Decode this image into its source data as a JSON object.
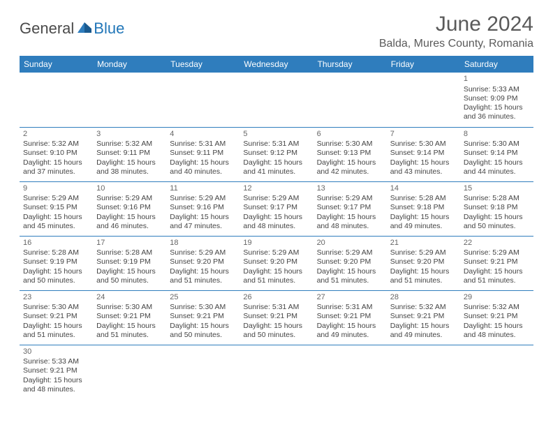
{
  "logo": {
    "text1": "General",
    "text2": "Blue"
  },
  "title": "June 2024",
  "location": "Balda, Mures County, Romania",
  "colors": {
    "header_bg": "#2f7dbd",
    "header_text": "#ffffff",
    "cell_border": "#2f7dbd",
    "title_color": "#5a5a5a",
    "text_color": "#444444",
    "logo_gray": "#4a4a4a",
    "logo_blue": "#2176b8"
  },
  "day_headers": [
    "Sunday",
    "Monday",
    "Tuesday",
    "Wednesday",
    "Thursday",
    "Friday",
    "Saturday"
  ],
  "cells": [
    {
      "day": "",
      "sunrise": "",
      "sunset": "",
      "daylight": ""
    },
    {
      "day": "",
      "sunrise": "",
      "sunset": "",
      "daylight": ""
    },
    {
      "day": "",
      "sunrise": "",
      "sunset": "",
      "daylight": ""
    },
    {
      "day": "",
      "sunrise": "",
      "sunset": "",
      "daylight": ""
    },
    {
      "day": "",
      "sunrise": "",
      "sunset": "",
      "daylight": ""
    },
    {
      "day": "",
      "sunrise": "",
      "sunset": "",
      "daylight": ""
    },
    {
      "day": "1",
      "sunrise": "Sunrise: 5:33 AM",
      "sunset": "Sunset: 9:09 PM",
      "daylight": "Daylight: 15 hours and 36 minutes."
    },
    {
      "day": "2",
      "sunrise": "Sunrise: 5:32 AM",
      "sunset": "Sunset: 9:10 PM",
      "daylight": "Daylight: 15 hours and 37 minutes."
    },
    {
      "day": "3",
      "sunrise": "Sunrise: 5:32 AM",
      "sunset": "Sunset: 9:11 PM",
      "daylight": "Daylight: 15 hours and 38 minutes."
    },
    {
      "day": "4",
      "sunrise": "Sunrise: 5:31 AM",
      "sunset": "Sunset: 9:11 PM",
      "daylight": "Daylight: 15 hours and 40 minutes."
    },
    {
      "day": "5",
      "sunrise": "Sunrise: 5:31 AM",
      "sunset": "Sunset: 9:12 PM",
      "daylight": "Daylight: 15 hours and 41 minutes."
    },
    {
      "day": "6",
      "sunrise": "Sunrise: 5:30 AM",
      "sunset": "Sunset: 9:13 PM",
      "daylight": "Daylight: 15 hours and 42 minutes."
    },
    {
      "day": "7",
      "sunrise": "Sunrise: 5:30 AM",
      "sunset": "Sunset: 9:14 PM",
      "daylight": "Daylight: 15 hours and 43 minutes."
    },
    {
      "day": "8",
      "sunrise": "Sunrise: 5:30 AM",
      "sunset": "Sunset: 9:14 PM",
      "daylight": "Daylight: 15 hours and 44 minutes."
    },
    {
      "day": "9",
      "sunrise": "Sunrise: 5:29 AM",
      "sunset": "Sunset: 9:15 PM",
      "daylight": "Daylight: 15 hours and 45 minutes."
    },
    {
      "day": "10",
      "sunrise": "Sunrise: 5:29 AM",
      "sunset": "Sunset: 9:16 PM",
      "daylight": "Daylight: 15 hours and 46 minutes."
    },
    {
      "day": "11",
      "sunrise": "Sunrise: 5:29 AM",
      "sunset": "Sunset: 9:16 PM",
      "daylight": "Daylight: 15 hours and 47 minutes."
    },
    {
      "day": "12",
      "sunrise": "Sunrise: 5:29 AM",
      "sunset": "Sunset: 9:17 PM",
      "daylight": "Daylight: 15 hours and 48 minutes."
    },
    {
      "day": "13",
      "sunrise": "Sunrise: 5:29 AM",
      "sunset": "Sunset: 9:17 PM",
      "daylight": "Daylight: 15 hours and 48 minutes."
    },
    {
      "day": "14",
      "sunrise": "Sunrise: 5:28 AM",
      "sunset": "Sunset: 9:18 PM",
      "daylight": "Daylight: 15 hours and 49 minutes."
    },
    {
      "day": "15",
      "sunrise": "Sunrise: 5:28 AM",
      "sunset": "Sunset: 9:18 PM",
      "daylight": "Daylight: 15 hours and 50 minutes."
    },
    {
      "day": "16",
      "sunrise": "Sunrise: 5:28 AM",
      "sunset": "Sunset: 9:19 PM",
      "daylight": "Daylight: 15 hours and 50 minutes."
    },
    {
      "day": "17",
      "sunrise": "Sunrise: 5:28 AM",
      "sunset": "Sunset: 9:19 PM",
      "daylight": "Daylight: 15 hours and 50 minutes."
    },
    {
      "day": "18",
      "sunrise": "Sunrise: 5:29 AM",
      "sunset": "Sunset: 9:20 PM",
      "daylight": "Daylight: 15 hours and 51 minutes."
    },
    {
      "day": "19",
      "sunrise": "Sunrise: 5:29 AM",
      "sunset": "Sunset: 9:20 PM",
      "daylight": "Daylight: 15 hours and 51 minutes."
    },
    {
      "day": "20",
      "sunrise": "Sunrise: 5:29 AM",
      "sunset": "Sunset: 9:20 PM",
      "daylight": "Daylight: 15 hours and 51 minutes."
    },
    {
      "day": "21",
      "sunrise": "Sunrise: 5:29 AM",
      "sunset": "Sunset: 9:20 PM",
      "daylight": "Daylight: 15 hours and 51 minutes."
    },
    {
      "day": "22",
      "sunrise": "Sunrise: 5:29 AM",
      "sunset": "Sunset: 9:21 PM",
      "daylight": "Daylight: 15 hours and 51 minutes."
    },
    {
      "day": "23",
      "sunrise": "Sunrise: 5:30 AM",
      "sunset": "Sunset: 9:21 PM",
      "daylight": "Daylight: 15 hours and 51 minutes."
    },
    {
      "day": "24",
      "sunrise": "Sunrise: 5:30 AM",
      "sunset": "Sunset: 9:21 PM",
      "daylight": "Daylight: 15 hours and 51 minutes."
    },
    {
      "day": "25",
      "sunrise": "Sunrise: 5:30 AM",
      "sunset": "Sunset: 9:21 PM",
      "daylight": "Daylight: 15 hours and 50 minutes."
    },
    {
      "day": "26",
      "sunrise": "Sunrise: 5:31 AM",
      "sunset": "Sunset: 9:21 PM",
      "daylight": "Daylight: 15 hours and 50 minutes."
    },
    {
      "day": "27",
      "sunrise": "Sunrise: 5:31 AM",
      "sunset": "Sunset: 9:21 PM",
      "daylight": "Daylight: 15 hours and 49 minutes."
    },
    {
      "day": "28",
      "sunrise": "Sunrise: 5:32 AM",
      "sunset": "Sunset: 9:21 PM",
      "daylight": "Daylight: 15 hours and 49 minutes."
    },
    {
      "day": "29",
      "sunrise": "Sunrise: 5:32 AM",
      "sunset": "Sunset: 9:21 PM",
      "daylight": "Daylight: 15 hours and 48 minutes."
    },
    {
      "day": "30",
      "sunrise": "Sunrise: 5:33 AM",
      "sunset": "Sunset: 9:21 PM",
      "daylight": "Daylight: 15 hours and 48 minutes."
    },
    {
      "day": "",
      "sunrise": "",
      "sunset": "",
      "daylight": ""
    },
    {
      "day": "",
      "sunrise": "",
      "sunset": "",
      "daylight": ""
    },
    {
      "day": "",
      "sunrise": "",
      "sunset": "",
      "daylight": ""
    },
    {
      "day": "",
      "sunrise": "",
      "sunset": "",
      "daylight": ""
    },
    {
      "day": "",
      "sunrise": "",
      "sunset": "",
      "daylight": ""
    },
    {
      "day": "",
      "sunrise": "",
      "sunset": "",
      "daylight": ""
    }
  ]
}
